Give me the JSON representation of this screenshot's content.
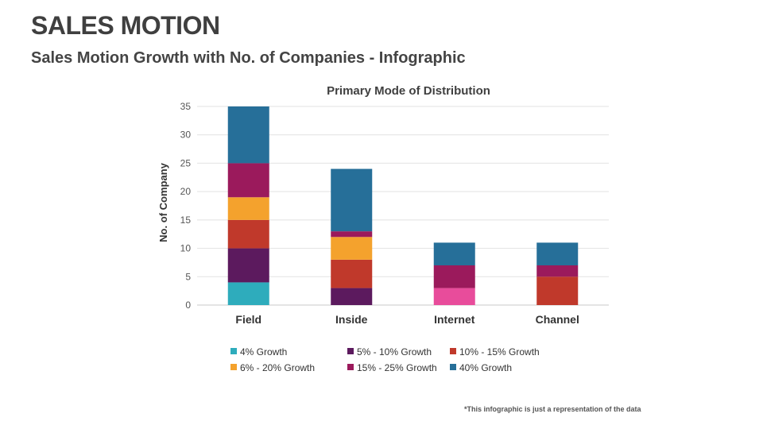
{
  "slide": {
    "title": "SALES MOTION",
    "subtitle": "Sales Motion Growth with No. of Companies - Infographic",
    "footnote": "*This  infographic is just a representation of the data"
  },
  "chart_data": {
    "type": "bar",
    "stacked": true,
    "title": "Primary Mode of Distribution",
    "xlabel": "",
    "ylabel": "No. of Company",
    "ylim": [
      0,
      35
    ],
    "yticks": [
      0,
      5,
      10,
      15,
      20,
      25,
      30,
      35
    ],
    "grid": true,
    "legend_position": "bottom",
    "categories": [
      "Field",
      "Inside",
      "Internet",
      "Channel"
    ],
    "series": [
      {
        "name": "4% Growth",
        "color": "#2eacbc",
        "values": [
          4,
          0,
          0,
          0
        ]
      },
      {
        "name": "5% - 10% Growth",
        "color": "#5c1a5e",
        "values": [
          6,
          3,
          0,
          0
        ]
      },
      {
        "name": "10% - 15% Growth",
        "color": "#c0392b",
        "values": [
          5,
          5,
          3,
          5
        ]
      },
      {
        "name": "6% - 20% Growth",
        "color": "#f4a22d",
        "values": [
          4,
          4,
          0,
          0
        ]
      },
      {
        "name": "15% - 25% Growth",
        "color": "#9b1a5c",
        "values": [
          6,
          1,
          4,
          2
        ]
      },
      {
        "name": "40% Growth",
        "color": "#266f99",
        "values": [
          10,
          11,
          4,
          4
        ]
      }
    ],
    "overrides": [
      {
        "category": "Internet",
        "series": "10% - 15% Growth",
        "segment": "lower",
        "value": 3,
        "color": "#e84c9b"
      }
    ]
  }
}
